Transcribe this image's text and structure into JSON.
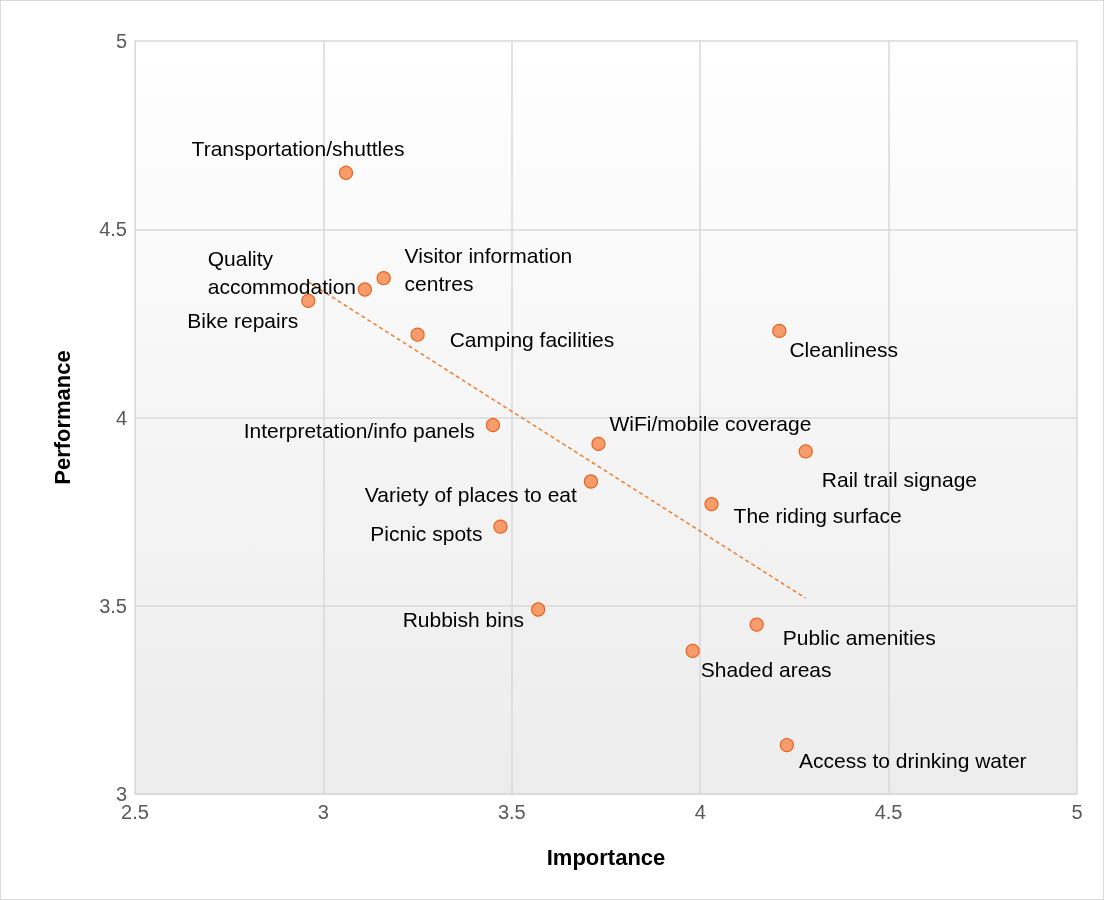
{
  "chart_data": {
    "type": "scatter",
    "xlabel": "Importance",
    "ylabel": "Performance",
    "xlim": [
      2.5,
      5
    ],
    "xticks": [
      2.5,
      3,
      3.5,
      4,
      4.5,
      5
    ],
    "ylim": [
      3,
      5
    ],
    "yticks": [
      3,
      3.5,
      4,
      4.5,
      5
    ],
    "grid": true,
    "legend": false,
    "marker": "circle",
    "series": [
      {
        "name": "Transportation/shuttles",
        "color": "#f79c6c",
        "x": [
          3.06
        ],
        "values": [
          4.65
        ]
      },
      {
        "name": "Quality accommodation",
        "color": "#f79c6c",
        "x": [
          3.11
        ],
        "values": [
          4.34
        ]
      },
      {
        "name": "Visitor information centres",
        "color": "#f79c6c",
        "x": [
          3.16
        ],
        "values": [
          4.37
        ]
      },
      {
        "name": "Bike repairs",
        "color": "#f79c6c",
        "x": [
          2.96
        ],
        "values": [
          4.31
        ]
      },
      {
        "name": "Camping facilities",
        "color": "#f79c6c",
        "x": [
          3.25
        ],
        "values": [
          4.22
        ]
      },
      {
        "name": "Cleanliness",
        "color": "#f79c6c",
        "x": [
          4.21
        ],
        "values": [
          4.23
        ]
      },
      {
        "name": "Interpretation/info panels",
        "color": "#f79c6c",
        "x": [
          3.45
        ],
        "values": [
          3.98
        ]
      },
      {
        "name": "WiFi/mobile coverage",
        "color": "#f79c6c",
        "x": [
          3.73
        ],
        "values": [
          3.93
        ]
      },
      {
        "name": "Rail trail signage",
        "color": "#f79c6c",
        "x": [
          4.28
        ],
        "values": [
          3.91
        ]
      },
      {
        "name": "Variety of places to eat",
        "color": "#f79c6c",
        "x": [
          3.71
        ],
        "values": [
          3.83
        ]
      },
      {
        "name": "The riding surface",
        "color": "#f79c6c",
        "x": [
          4.03
        ],
        "values": [
          3.77
        ]
      },
      {
        "name": "Picnic spots",
        "color": "#f79c6c",
        "x": [
          3.47
        ],
        "values": [
          3.71
        ]
      },
      {
        "name": "Rubbish bins",
        "color": "#f79c6c",
        "x": [
          3.57
        ],
        "values": [
          3.49
        ]
      },
      {
        "name": "Public amenities",
        "color": "#f79c6c",
        "x": [
          4.15
        ],
        "values": [
          3.45
        ]
      },
      {
        "name": "Shaded areas",
        "color": "#f79c6c",
        "x": [
          3.98
        ],
        "values": [
          3.38
        ]
      },
      {
        "name": "Access to drinking water",
        "color": "#f79c6c",
        "x": [
          4.23
        ],
        "values": [
          3.13
        ]
      },
      {
        "type": "line",
        "color": "#ed7d31",
        "x": [
          2.96,
          4.28
        ],
        "values": [
          4.36,
          3.52
        ],
        "marker": "none",
        "line_style": "dashed"
      }
    ]
  }
}
